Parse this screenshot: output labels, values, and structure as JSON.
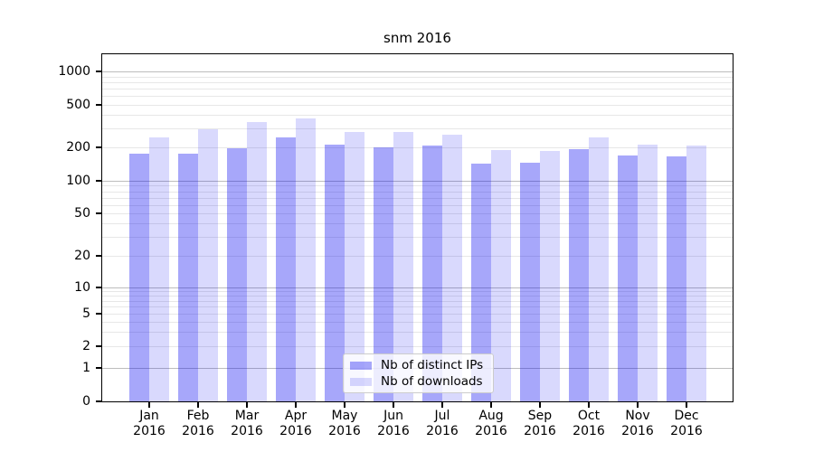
{
  "chart_data": {
    "type": "bar",
    "title": "snm 2016",
    "categories": [
      "Jan",
      "Feb",
      "Mar",
      "Apr",
      "May",
      "Jun",
      "Jul",
      "Aug",
      "Sep",
      "Oct",
      "Nov",
      "Dec"
    ],
    "year_label": "2016",
    "series": [
      {
        "name": "Nb of distinct IPs",
        "color": "rgba(0,0,240,0.345)",
        "values": [
          175,
          175,
          198,
          250,
          211,
          201,
          209,
          144,
          146,
          193,
          170,
          166
        ]
      },
      {
        "name": "Nb of downloads",
        "color": "rgba(0,0,240,0.148)",
        "values": [
          250,
          297,
          344,
          372,
          276,
          279,
          262,
          188,
          185,
          249,
          214,
          210
        ]
      }
    ],
    "y_ticks": [
      0,
      1,
      2,
      5,
      10,
      20,
      50,
      100,
      200,
      500,
      1000
    ],
    "scale": "symlog",
    "ylim": [
      0,
      1400
    ],
    "grid": true,
    "legend_position": "lower center",
    "colors": {
      "major_gridline": "#bdbdbd",
      "minor_gridline": "#e7e7e7",
      "axis": "#000000"
    }
  }
}
